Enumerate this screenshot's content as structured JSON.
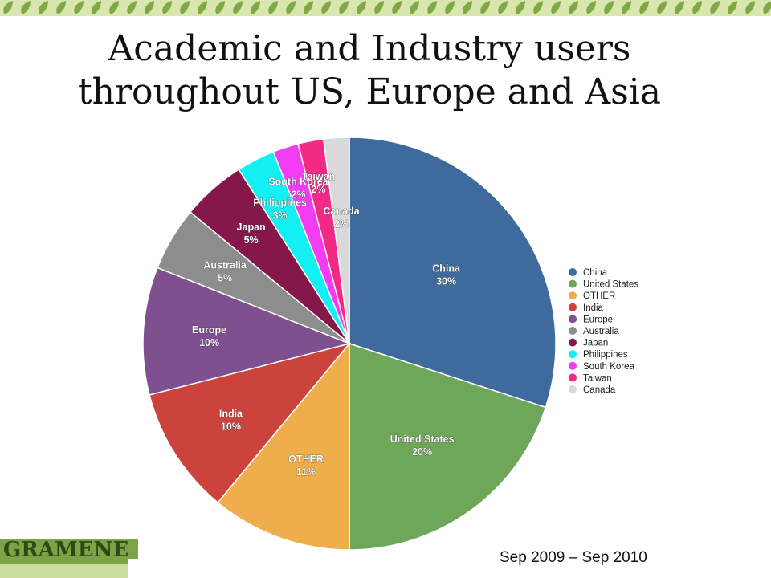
{
  "title": {
    "line1": "Academic and Industry users",
    "line2": "throughout US, Europe and Asia"
  },
  "footer": {
    "logo_text": "GRAMENE",
    "date_range": "Sep 2009 – Sep 2010"
  },
  "chart_data": {
    "type": "pie",
    "start_angle": "12 o'clock",
    "direction": "clockwise",
    "slices": [
      {
        "label": "China",
        "percent": 30,
        "percent_label": "30%",
        "color": "#3e6a9e"
      },
      {
        "label": "United States",
        "percent": 20,
        "percent_label": "20%",
        "color": "#6ea65a"
      },
      {
        "label": "OTHER",
        "percent": 11,
        "percent_label": "11%",
        "color": "#eeae4b"
      },
      {
        "label": "India",
        "percent": 10,
        "percent_label": "10%",
        "color": "#cc433d"
      },
      {
        "label": "Europe",
        "percent": 10,
        "percent_label": "10%",
        "color": "#7e5090"
      },
      {
        "label": "Australia",
        "percent": 5,
        "percent_label": "5%",
        "color": "#8d8d8d"
      },
      {
        "label": "Japan",
        "percent": 5,
        "percent_label": "5%",
        "color": "#85174a"
      },
      {
        "label": "Philippines",
        "percent": 3,
        "percent_label": "3%",
        "color": "#12f0f4"
      },
      {
        "label": "South Korea",
        "percent": 2,
        "percent_label": "2%",
        "color": "#f23cf2"
      },
      {
        "label": "Taiwan",
        "percent": 2,
        "percent_label": "2%",
        "color": "#f22a86"
      },
      {
        "label": "Canada",
        "percent": 2,
        "percent_label": "2%",
        "color": "#d9d9d9"
      }
    ],
    "legend": {
      "placement": "right",
      "entries": [
        "China",
        "United States",
        "OTHER",
        "India",
        "Europe",
        "Australia",
        "Japan",
        "Philippines",
        "South Korea",
        "Taiwan",
        "Canada"
      ]
    }
  }
}
